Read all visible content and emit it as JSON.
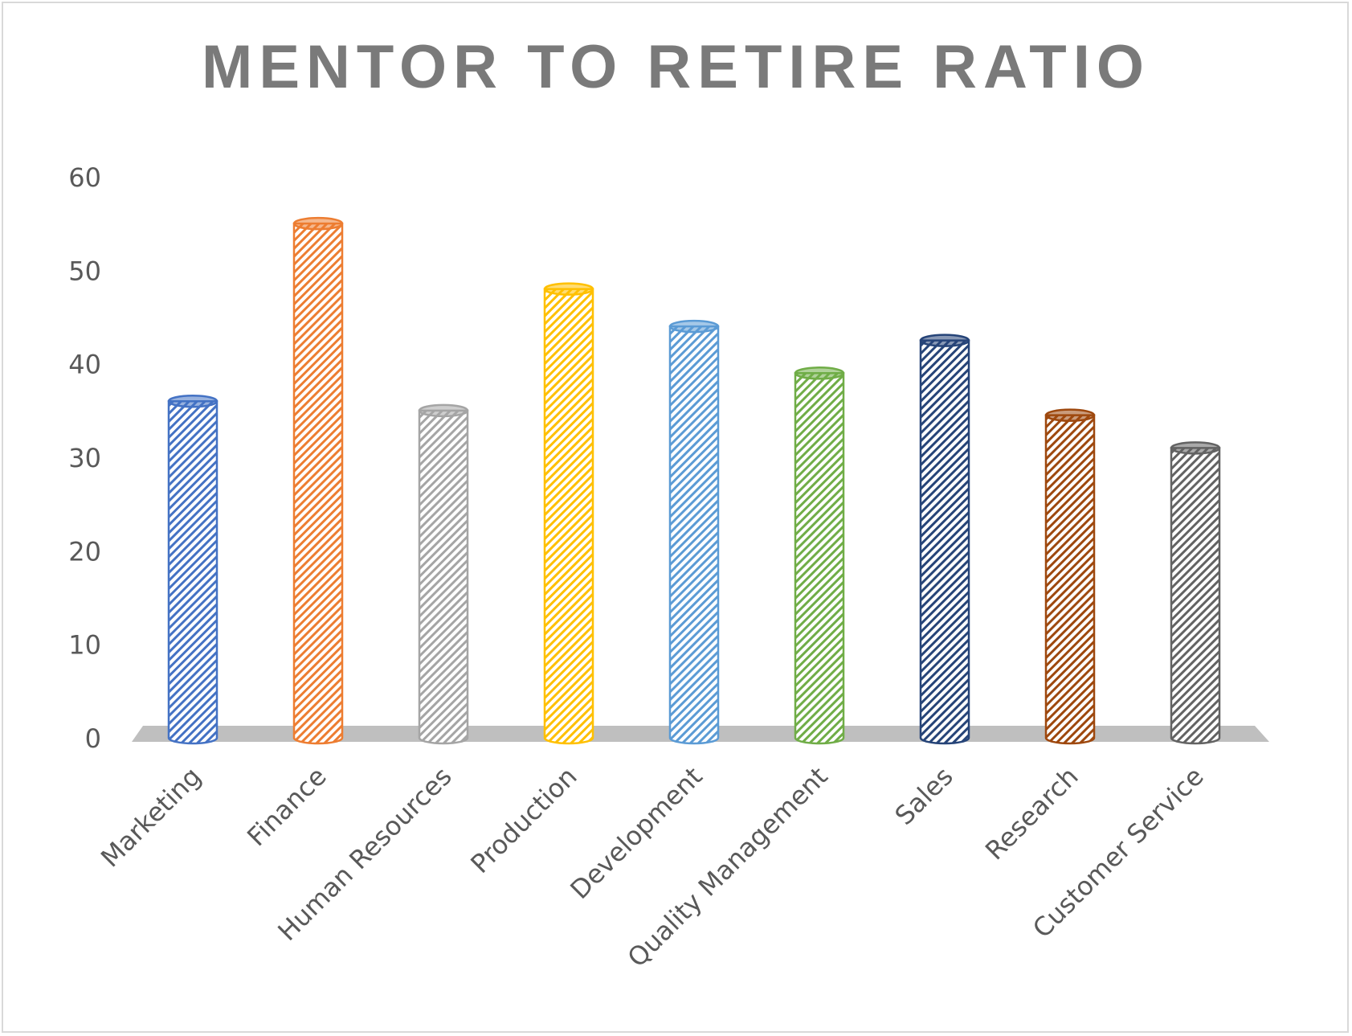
{
  "chart_data": {
    "type": "bar",
    "title": "MENTOR TO RETIRE RATIO",
    "xlabel": "",
    "ylabel": "",
    "ylim": [
      0,
      60
    ],
    "yticks": [
      0,
      10,
      20,
      30,
      40,
      50,
      60
    ],
    "gridlines": false,
    "legend": "none",
    "bar_shape": "cylinder",
    "fill_pattern": "diagonal-stripes",
    "categories": [
      "Marketing",
      "Finance",
      "Human Resources",
      "Production",
      "Development",
      "Quality Management",
      "Sales",
      "Research",
      "Customer Service"
    ],
    "values": [
      36,
      55,
      35,
      48,
      44,
      39,
      42.5,
      34.5,
      31
    ],
    "colors": [
      "#4472c4",
      "#ed7d31",
      "#a5a5a5",
      "#ffc000",
      "#5b9bd5",
      "#70ad47",
      "#264478",
      "#9e480e",
      "#636363"
    ],
    "floor_color": "#bfbfbf"
  }
}
